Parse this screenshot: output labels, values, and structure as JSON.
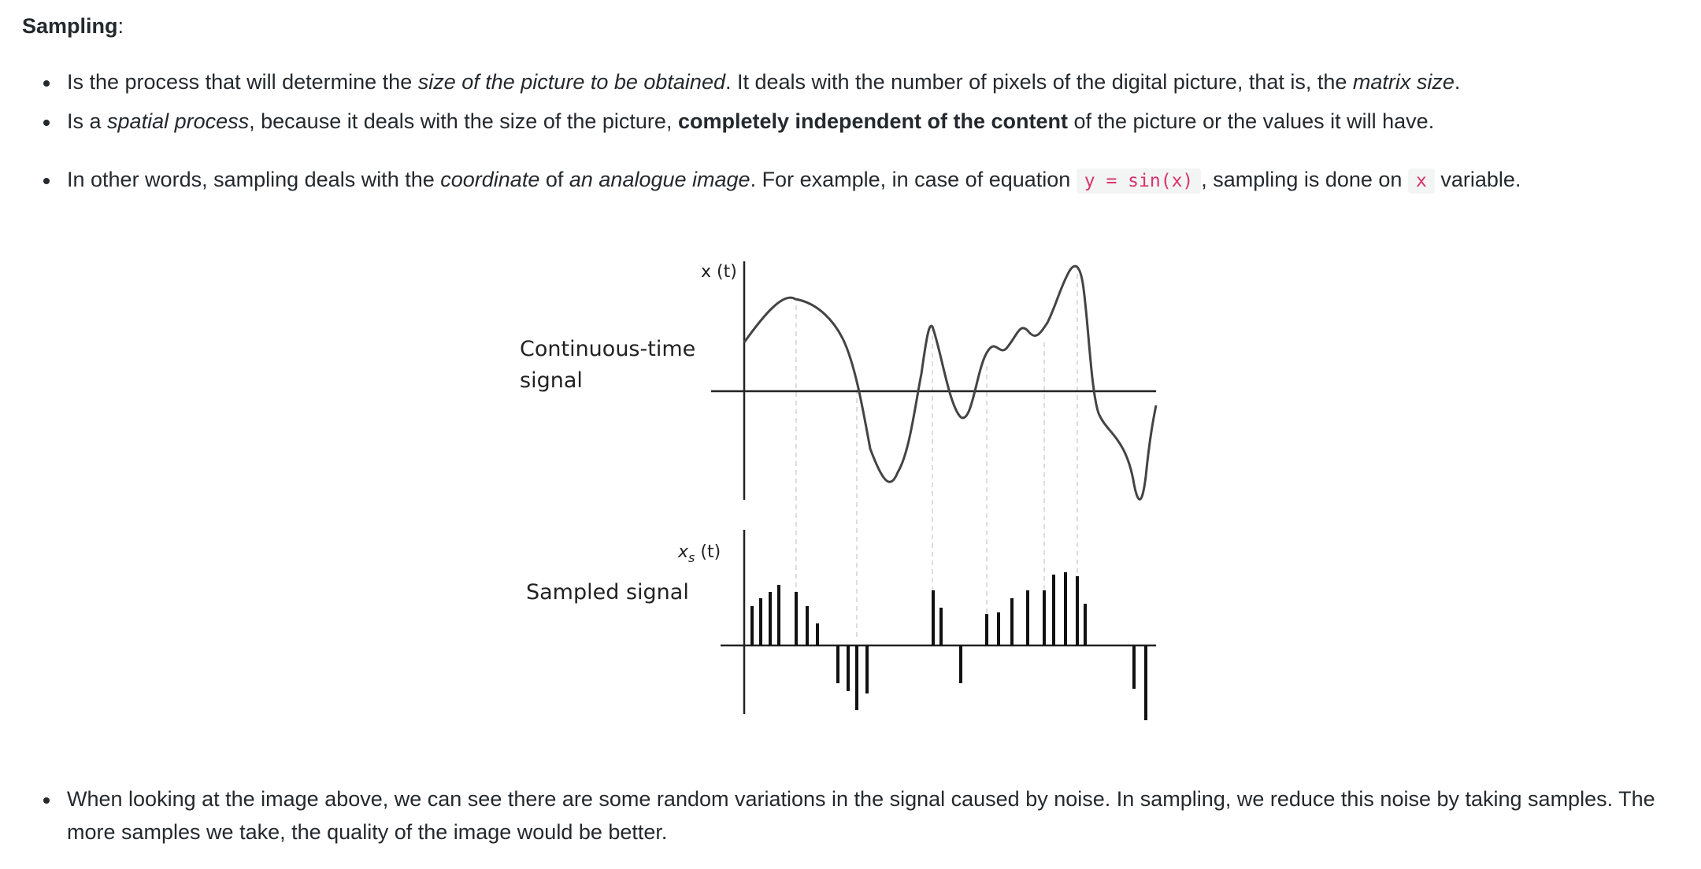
{
  "heading": {
    "title": "Sampling",
    "suffix": ":"
  },
  "bullets": [
    {
      "t1": "Is the process that will determine the ",
      "i1": "size of the picture to be obtained",
      "t2": ". It deals with the number of pixels of the digital picture, that is, the ",
      "i2": "matrix size",
      "t3": "."
    },
    {
      "t1": "Is a ",
      "i1": "spatial process",
      "t2": ", because it deals with the size of the picture, ",
      "b1": "completely independent of the content",
      "t3": " of the picture or the values it will have."
    },
    {
      "t1": "In other words, sampling deals with the ",
      "i1": "coordinate",
      "t2": " of ",
      "i2": "an analogue image",
      "t3": ". For example, in case of equation ",
      "c1": "y = sin(x)",
      "t4": ", sampling is done on ",
      "c2": "x",
      "t5": " variable."
    },
    {
      "t1": "When looking at the image above, we can see there are some random variations in the signal caused by noise. In sampling, we reduce this noise by taking samples. The more samples we take, the quality of the image would be better."
    }
  ],
  "figure": {
    "continuous_label_line1": "Continuous-time",
    "continuous_label_line2": "signal",
    "continuous_axis_label": "x (t)",
    "sampled_label": "Sampled signal",
    "sampled_axis_label_var": "x",
    "sampled_axis_label_sub": "s",
    "sampled_axis_label_rest": " (t)",
    "colors": {
      "curve": "#444444",
      "axis": "#222222",
      "guides": "#c8c8c8",
      "stems": "#111111"
    }
  }
}
